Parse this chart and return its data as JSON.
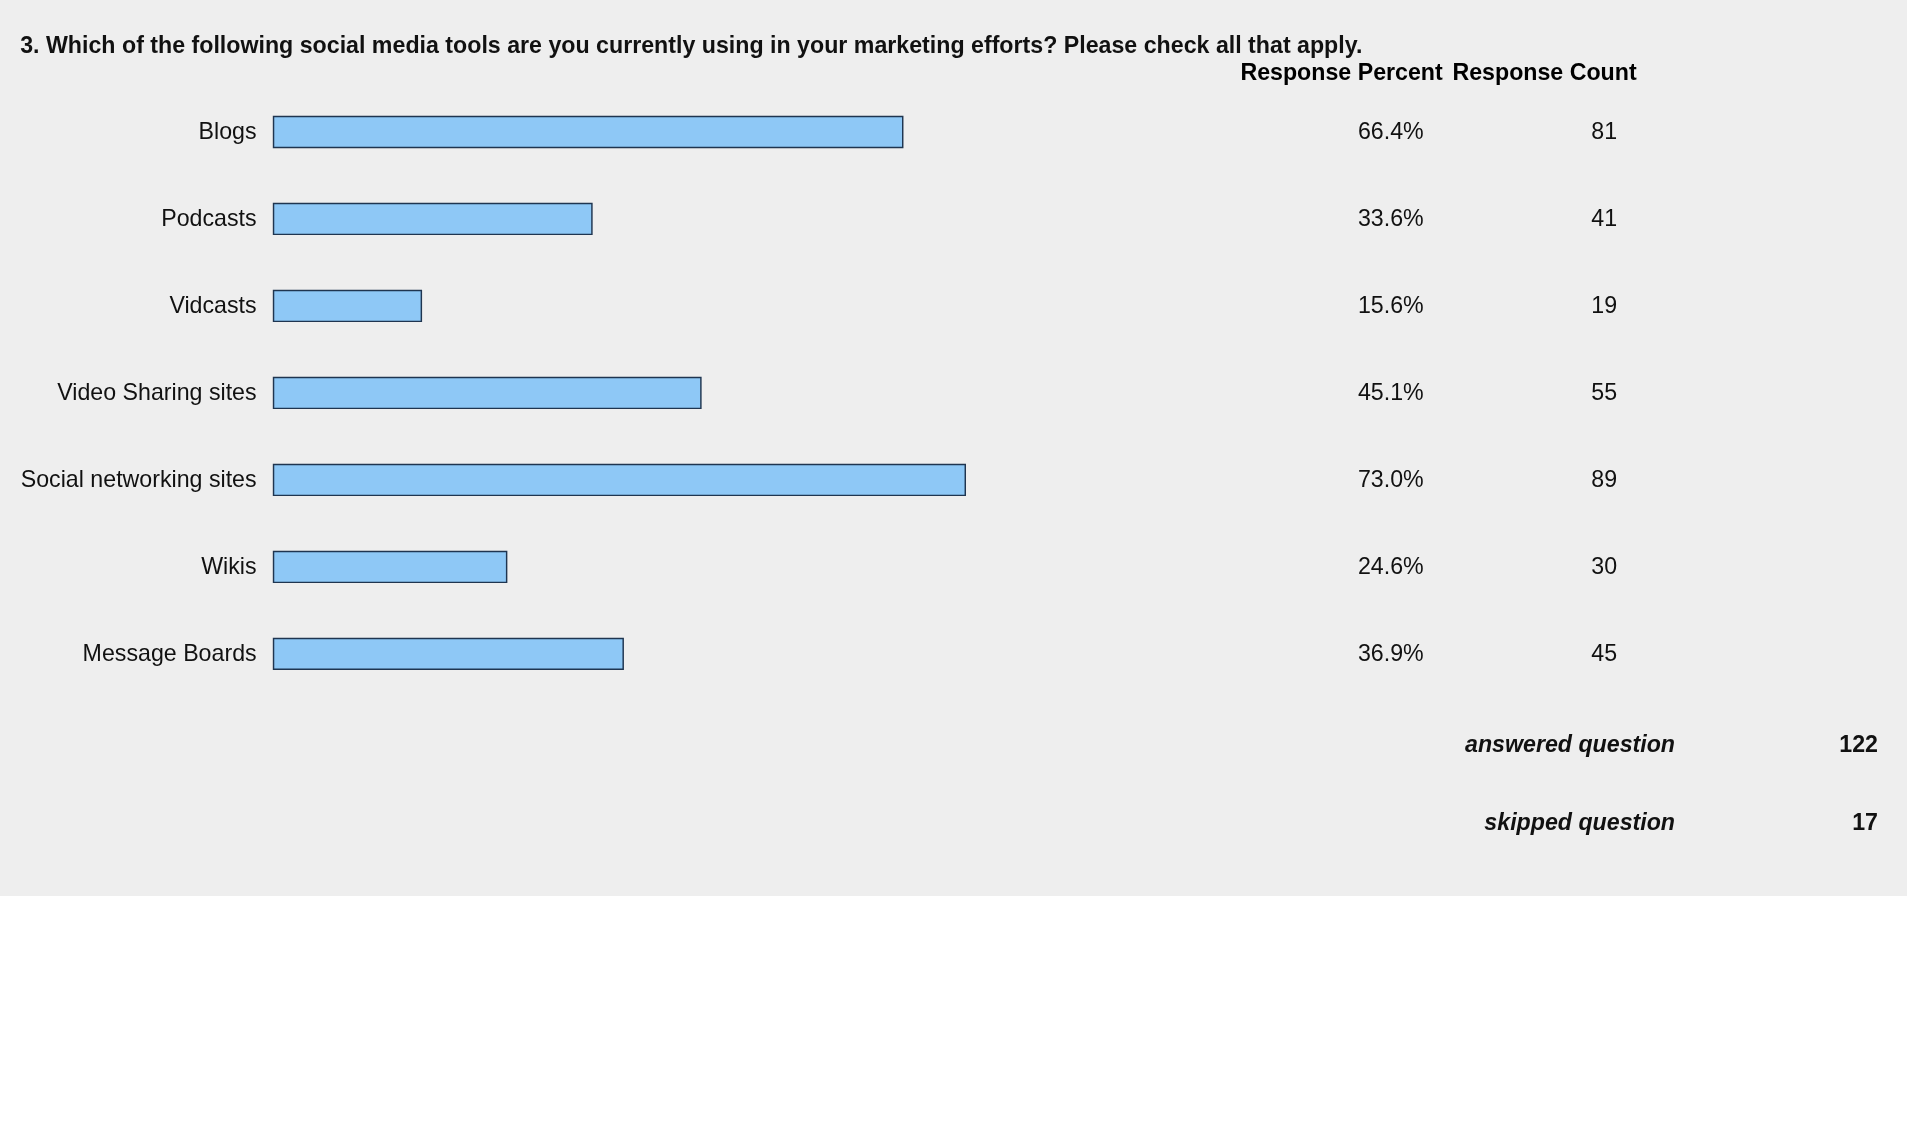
{
  "chart_data": {
    "type": "bar",
    "orientation": "horizontal",
    "title": "3. Which of the following social media tools are you currently using in your marketing efforts? Please check all that apply.",
    "categories": [
      "Blogs",
      "Podcasts",
      "Vidcasts",
      "Video Sharing sites",
      "Social networking sites",
      "Wikis",
      "Message Boards"
    ],
    "values": [
      66.4,
      33.6,
      15.6,
      45.1,
      73.0,
      24.6,
      36.9
    ],
    "value_labels": [
      "66.4%",
      "33.6%",
      "15.6%",
      "45.1%",
      "73.0%",
      "24.6%",
      "36.9%"
    ],
    "color": "#8ec8f6",
    "grid": false,
    "annotations": [
      "Response Percent",
      "Response Count",
      "81",
      "41",
      "19",
      "55",
      "89",
      "30",
      "45",
      "answered question",
      "122",
      "skipped question",
      "17"
    ]
  }
}
